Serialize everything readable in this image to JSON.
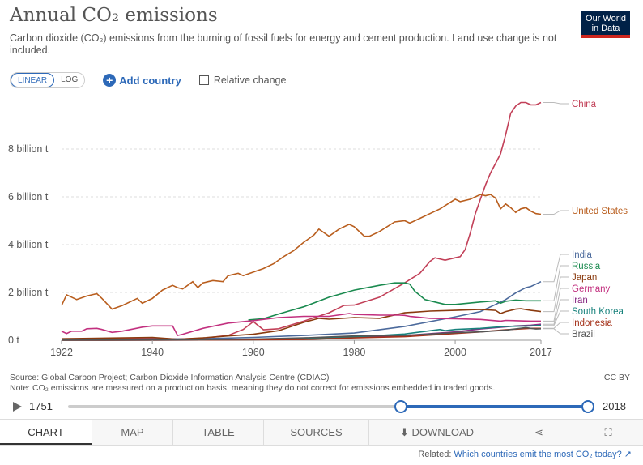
{
  "header": {
    "title": "Annual CO₂ emissions",
    "subtitle": "Carbon dioxide (CO₂) emissions from the burning of fossil fuels for energy and cement production. Land use change is not included.",
    "logo_line1": "Our World",
    "logo_line2": "in Data"
  },
  "controls": {
    "linear_label": "LINEAR",
    "log_label": "LOG",
    "add_country_label": "Add country",
    "relative_change_label": "Relative change"
  },
  "colors": {
    "China": "#c24058",
    "United States": "#b95e1e",
    "India": "#4c6a9c",
    "Russia": "#1a8a4f",
    "Japan": "#8a3a0e",
    "Germany": "#c2307f",
    "Iran": "#8a2d85",
    "South Korea": "#18827c",
    "Indonesia": "#a4321a",
    "Brazil": "#555555",
    "axis_text": "#555555",
    "grid": "#dddddd",
    "accent": "#2d69b8"
  },
  "chart_data": {
    "type": "line",
    "title": "Annual CO₂ emissions",
    "ylim": [
      0,
      10
    ],
    "y_unit": "billion t",
    "y_ticks": [
      {
        "value": 0,
        "label": "0 t"
      },
      {
        "value": 2,
        "label": "2 billion t"
      },
      {
        "value": 4,
        "label": "4 billion t"
      },
      {
        "value": 6,
        "label": "6 billion t"
      },
      {
        "value": 8,
        "label": "8 billion t"
      }
    ],
    "xlim": [
      1922,
      2017
    ],
    "x_ticks": [
      "1922",
      "1940",
      "1960",
      "1980",
      "2000",
      "2017"
    ],
    "grid": true,
    "series": [
      {
        "name": "China",
        "points": [
          [
            1922,
            0.02
          ],
          [
            1940,
            0.08
          ],
          [
            1945,
            0.05
          ],
          [
            1950,
            0.08
          ],
          [
            1955,
            0.2
          ],
          [
            1958,
            0.45
          ],
          [
            1960,
            0.78
          ],
          [
            1962,
            0.44
          ],
          [
            1965,
            0.48
          ],
          [
            1970,
            0.8
          ],
          [
            1975,
            1.15
          ],
          [
            1978,
            1.46
          ],
          [
            1980,
            1.47
          ],
          [
            1985,
            1.8
          ],
          [
            1990,
            2.4
          ],
          [
            1993,
            2.8
          ],
          [
            1995,
            3.3
          ],
          [
            1996,
            3.45
          ],
          [
            1998,
            3.35
          ],
          [
            2000,
            3.45
          ],
          [
            2001,
            3.5
          ],
          [
            2002,
            3.8
          ],
          [
            2003,
            4.5
          ],
          [
            2004,
            5.3
          ],
          [
            2005,
            5.9
          ],
          [
            2006,
            6.5
          ],
          [
            2007,
            7.0
          ],
          [
            2008,
            7.4
          ],
          [
            2009,
            7.8
          ],
          [
            2010,
            8.6
          ],
          [
            2011,
            9.5
          ],
          [
            2012,
            9.8
          ],
          [
            2013,
            9.95
          ],
          [
            2014,
            9.95
          ],
          [
            2015,
            9.85
          ],
          [
            2016,
            9.85
          ],
          [
            2017,
            9.95
          ]
        ]
      },
      {
        "name": "United States",
        "points": [
          [
            1922,
            1.45
          ],
          [
            1923,
            1.9
          ],
          [
            1925,
            1.7
          ],
          [
            1927,
            1.85
          ],
          [
            1929,
            1.95
          ],
          [
            1930,
            1.75
          ],
          [
            1932,
            1.3
          ],
          [
            1934,
            1.45
          ],
          [
            1937,
            1.75
          ],
          [
            1938,
            1.55
          ],
          [
            1940,
            1.75
          ],
          [
            1942,
            2.1
          ],
          [
            1944,
            2.3
          ],
          [
            1945,
            2.2
          ],
          [
            1946,
            2.15
          ],
          [
            1948,
            2.45
          ],
          [
            1949,
            2.2
          ],
          [
            1950,
            2.4
          ],
          [
            1952,
            2.5
          ],
          [
            1954,
            2.45
          ],
          [
            1955,
            2.7
          ],
          [
            1957,
            2.8
          ],
          [
            1958,
            2.7
          ],
          [
            1960,
            2.85
          ],
          [
            1962,
            3.0
          ],
          [
            1964,
            3.2
          ],
          [
            1966,
            3.5
          ],
          [
            1968,
            3.75
          ],
          [
            1970,
            4.1
          ],
          [
            1972,
            4.4
          ],
          [
            1973,
            4.65
          ],
          [
            1975,
            4.35
          ],
          [
            1977,
            4.65
          ],
          [
            1979,
            4.85
          ],
          [
            1980,
            4.75
          ],
          [
            1982,
            4.35
          ],
          [
            1983,
            4.35
          ],
          [
            1985,
            4.55
          ],
          [
            1988,
            4.95
          ],
          [
            1990,
            5.0
          ],
          [
            1991,
            4.9
          ],
          [
            1993,
            5.1
          ],
          [
            1995,
            5.3
          ],
          [
            1997,
            5.5
          ],
          [
            2000,
            5.9
          ],
          [
            2001,
            5.8
          ],
          [
            2003,
            5.9
          ],
          [
            2005,
            6.1
          ],
          [
            2006,
            6.05
          ],
          [
            2007,
            6.1
          ],
          [
            2008,
            5.95
          ],
          [
            2009,
            5.5
          ],
          [
            2010,
            5.7
          ],
          [
            2011,
            5.55
          ],
          [
            2012,
            5.35
          ],
          [
            2013,
            5.5
          ],
          [
            2014,
            5.55
          ],
          [
            2015,
            5.4
          ],
          [
            2016,
            5.3
          ],
          [
            2017,
            5.27
          ]
        ]
      },
      {
        "name": "India",
        "points": [
          [
            1922,
            0.02
          ],
          [
            1950,
            0.06
          ],
          [
            1960,
            0.12
          ],
          [
            1970,
            0.2
          ],
          [
            1980,
            0.3
          ],
          [
            1990,
            0.58
          ],
          [
            2000,
            0.98
          ],
          [
            2005,
            1.2
          ],
          [
            2008,
            1.5
          ],
          [
            2010,
            1.7
          ],
          [
            2012,
            1.98
          ],
          [
            2014,
            2.2
          ],
          [
            2015,
            2.25
          ],
          [
            2016,
            2.35
          ],
          [
            2017,
            2.45
          ]
        ]
      },
      {
        "name": "Russia",
        "points": [
          [
            1959,
            0.85
          ],
          [
            1962,
            0.9
          ],
          [
            1965,
            1.1
          ],
          [
            1970,
            1.4
          ],
          [
            1975,
            1.8
          ],
          [
            1980,
            2.1
          ],
          [
            1985,
            2.3
          ],
          [
            1988,
            2.4
          ],
          [
            1990,
            2.4
          ],
          [
            1991,
            2.35
          ],
          [
            1992,
            2.05
          ],
          [
            1994,
            1.7
          ],
          [
            1996,
            1.6
          ],
          [
            1998,
            1.5
          ],
          [
            2000,
            1.5
          ],
          [
            2005,
            1.6
          ],
          [
            2008,
            1.65
          ],
          [
            2009,
            1.55
          ],
          [
            2010,
            1.63
          ],
          [
            2012,
            1.68
          ],
          [
            2014,
            1.65
          ],
          [
            2017,
            1.65
          ]
        ]
      },
      {
        "name": "Japan",
        "points": [
          [
            1922,
            0.06
          ],
          [
            1940,
            0.12
          ],
          [
            1945,
            0.04
          ],
          [
            1950,
            0.1
          ],
          [
            1955,
            0.18
          ],
          [
            1960,
            0.25
          ],
          [
            1965,
            0.4
          ],
          [
            1970,
            0.75
          ],
          [
            1973,
            0.92
          ],
          [
            1975,
            0.88
          ],
          [
            1980,
            0.95
          ],
          [
            1985,
            0.92
          ],
          [
            1990,
            1.15
          ],
          [
            1995,
            1.22
          ],
          [
            2000,
            1.25
          ],
          [
            2005,
            1.29
          ],
          [
            2008,
            1.25
          ],
          [
            2009,
            1.12
          ],
          [
            2010,
            1.2
          ],
          [
            2012,
            1.3
          ],
          [
            2013,
            1.32
          ],
          [
            2015,
            1.25
          ],
          [
            2017,
            1.2
          ]
        ]
      },
      {
        "name": "Germany",
        "points": [
          [
            1922,
            0.38
          ],
          [
            1923,
            0.28
          ],
          [
            1924,
            0.38
          ],
          [
            1926,
            0.38
          ],
          [
            1927,
            0.48
          ],
          [
            1929,
            0.5
          ],
          [
            1930,
            0.45
          ],
          [
            1932,
            0.33
          ],
          [
            1934,
            0.38
          ],
          [
            1938,
            0.55
          ],
          [
            1940,
            0.6
          ],
          [
            1944,
            0.6
          ],
          [
            1945,
            0.2
          ],
          [
            1946,
            0.25
          ],
          [
            1950,
            0.5
          ],
          [
            1955,
            0.72
          ],
          [
            1960,
            0.82
          ],
          [
            1965,
            0.95
          ],
          [
            1970,
            1.0
          ],
          [
            1975,
            1.0
          ],
          [
            1979,
            1.12
          ],
          [
            1980,
            1.08
          ],
          [
            1985,
            1.05
          ],
          [
            1989,
            1.05
          ],
          [
            1990,
            1.04
          ],
          [
            1991,
            1.0
          ],
          [
            1995,
            0.92
          ],
          [
            2000,
            0.9
          ],
          [
            2005,
            0.87
          ],
          [
            2009,
            0.8
          ],
          [
            2010,
            0.83
          ],
          [
            2015,
            0.8
          ],
          [
            2017,
            0.8
          ]
        ]
      },
      {
        "name": "Iran",
        "points": [
          [
            1922,
            0.0
          ],
          [
            1950,
            0.01
          ],
          [
            1960,
            0.03
          ],
          [
            1970,
            0.08
          ],
          [
            1980,
            0.12
          ],
          [
            1990,
            0.2
          ],
          [
            2000,
            0.35
          ],
          [
            2005,
            0.47
          ],
          [
            2010,
            0.56
          ],
          [
            2012,
            0.6
          ],
          [
            2015,
            0.63
          ],
          [
            2017,
            0.67
          ]
        ]
      },
      {
        "name": "South Korea",
        "points": [
          [
            1922,
            0.0
          ],
          [
            1950,
            0.01
          ],
          [
            1960,
            0.02
          ],
          [
            1970,
            0.06
          ],
          [
            1980,
            0.14
          ],
          [
            1990,
            0.26
          ],
          [
            1997,
            0.45
          ],
          [
            1998,
            0.4
          ],
          [
            2000,
            0.45
          ],
          [
            2005,
            0.5
          ],
          [
            2010,
            0.58
          ],
          [
            2015,
            0.6
          ],
          [
            2017,
            0.62
          ]
        ]
      },
      {
        "name": "Indonesia",
        "points": [
          [
            1922,
            0.0
          ],
          [
            1950,
            0.01
          ],
          [
            1960,
            0.02
          ],
          [
            1970,
            0.03
          ],
          [
            1980,
            0.1
          ],
          [
            1990,
            0.15
          ],
          [
            2000,
            0.28
          ],
          [
            2005,
            0.35
          ],
          [
            2010,
            0.44
          ],
          [
            2015,
            0.5
          ],
          [
            2017,
            0.5
          ]
        ]
      },
      {
        "name": "Brazil",
        "points": [
          [
            1922,
            0.01
          ],
          [
            1950,
            0.02
          ],
          [
            1960,
            0.05
          ],
          [
            1970,
            0.1
          ],
          [
            1980,
            0.18
          ],
          [
            1990,
            0.2
          ],
          [
            2000,
            0.32
          ],
          [
            2005,
            0.35
          ],
          [
            2010,
            0.42
          ],
          [
            2014,
            0.53
          ],
          [
            2015,
            0.5
          ],
          [
            2016,
            0.47
          ],
          [
            2017,
            0.48
          ]
        ]
      }
    ],
    "legend": [
      "China",
      "United States",
      "India",
      "Russia",
      "Japan",
      "Germany",
      "Iran",
      "South Korea",
      "Indonesia",
      "Brazil"
    ]
  },
  "footer": {
    "source": "Source: Global Carbon Project; Carbon Dioxide Information Analysis Centre (CDIAC)",
    "note": "Note: CO₂ emissions are measured on a production basis, meaning they do not correct for emissions embedded in traded goods.",
    "license": "CC BY"
  },
  "timeline": {
    "start_year": "1751",
    "end_year": "2018"
  },
  "tabs": [
    {
      "label": "CHART",
      "active": true
    },
    {
      "label": "MAP",
      "active": false
    },
    {
      "label": "TABLE",
      "active": false
    },
    {
      "label": "SOURCES",
      "active": false
    },
    {
      "label": "DOWNLOAD",
      "active": false
    },
    {
      "label": "",
      "icon": "share-icon"
    },
    {
      "label": "",
      "icon": "fullscreen-icon"
    }
  ],
  "related": {
    "prefix": "Related:",
    "link_text": "Which countries emit the most CO₂ today?"
  }
}
